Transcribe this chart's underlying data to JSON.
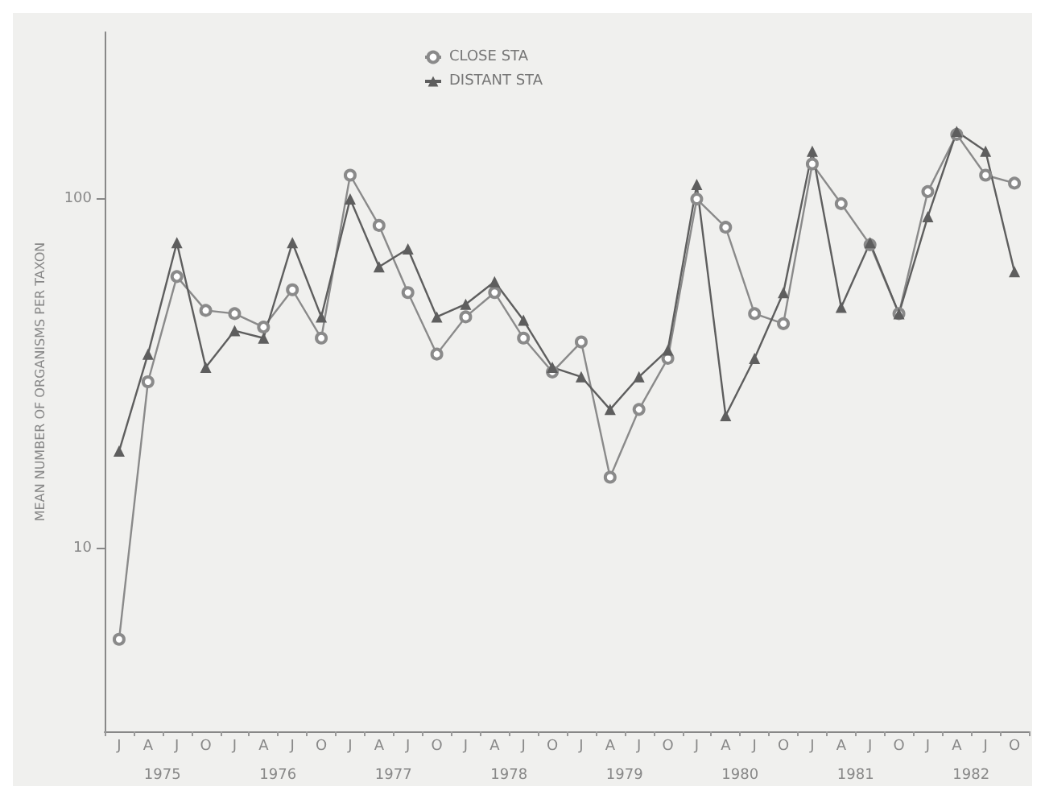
{
  "chart_data": {
    "type": "line",
    "ylabel": "MEAN NUMBER OF ORGANISMS PER TAXON",
    "categories": [
      "J",
      "A",
      "J",
      "O",
      "J",
      "A",
      "J",
      "O",
      "J",
      "A",
      "J",
      "O",
      "J",
      "A",
      "J",
      "O",
      "J",
      "A",
      "J",
      "O",
      "J",
      "A",
      "J",
      "O",
      "J",
      "A",
      "J",
      "O",
      "J",
      "A",
      "J",
      "O"
    ],
    "annotations": [
      "1975",
      "1976",
      "1977",
      "1978",
      "1979",
      "1980",
      "1981",
      "1982"
    ],
    "series": [
      {
        "name": "CLOSE STA",
        "color": "#8a8a8a",
        "marker": "circle",
        "values": [
          5.5,
          30,
          60,
          48,
          47,
          43,
          55,
          40,
          117,
          84,
          54,
          36,
          46,
          54,
          40,
          32,
          39,
          16,
          25,
          35,
          100,
          83,
          47,
          44,
          126,
          97,
          74,
          47,
          105,
          153,
          117,
          111
        ]
      },
      {
        "name": "DISTANT STA",
        "color": "#5e5e5e",
        "marker": "triangle",
        "values": [
          19,
          36,
          75,
          33,
          42,
          40,
          75,
          46,
          100,
          64,
          72,
          46,
          50,
          58,
          45,
          33,
          31,
          25,
          31,
          37,
          110,
          24,
          35,
          54,
          137,
          49,
          75,
          47,
          89,
          156,
          137,
          62
        ]
      }
    ],
    "log": "y",
    "ylim": [
      3,
      300
    ],
    "yticks": [
      10,
      100
    ],
    "legend": "top",
    "grid": false
  }
}
